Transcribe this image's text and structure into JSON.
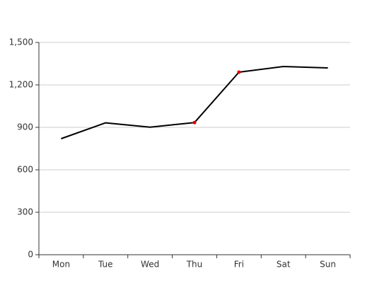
{
  "chart_data": {
    "type": "line",
    "categories": [
      "Mon",
      "Tue",
      "Wed",
      "Thu",
      "Fri",
      "Sat",
      "Sun"
    ],
    "values": [
      820,
      932,
      901,
      934,
      1290,
      1330,
      1320
    ],
    "color": "#000000",
    "markers": [
      false,
      false,
      false,
      true,
      true,
      false,
      false
    ],
    "marker_color": "#e00000",
    "ylim": [
      0,
      1500
    ],
    "yticks": [
      0,
      300,
      600,
      900,
      {
        "value": 1200,
        "label": "1,200"
      },
      {
        "value": 1500,
        "label": "1,500"
      }
    ],
    "grid": true
  }
}
